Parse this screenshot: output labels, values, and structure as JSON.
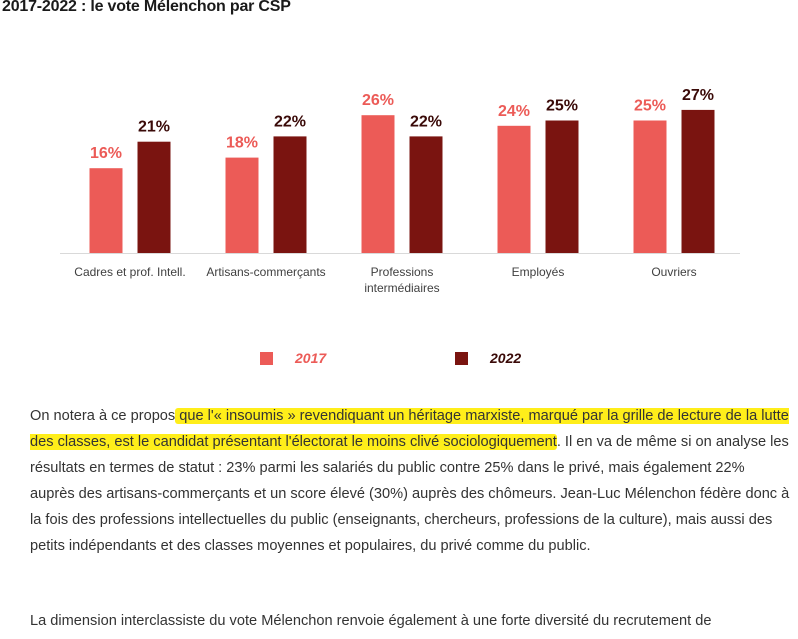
{
  "heading": "2017-2022 : le vote Mélenchon par CSP",
  "colors": {
    "s2017": "#ec5b57",
    "s2022": "#7a1410"
  },
  "chart_data": {
    "type": "bar",
    "categories": [
      [
        "Cadres et prof. Intell."
      ],
      [
        "Artisans-commerçants"
      ],
      [
        "Professions",
        "intermédiaires"
      ],
      [
        "Employés"
      ],
      [
        "Ouvriers"
      ]
    ],
    "series": [
      {
        "name": "2017",
        "values": [
          16,
          18,
          26,
          24,
          25
        ]
      },
      {
        "name": "2022",
        "values": [
          21,
          22,
          22,
          25,
          27
        ]
      }
    ],
    "data_labels": [
      [
        "16%",
        "18%",
        "26%",
        "24%",
        "25%"
      ],
      [
        "21%",
        "22%",
        "22%",
        "25%",
        "27%"
      ]
    ],
    "ylim": [
      0,
      30
    ],
    "grid": false,
    "legend_position": "bottom"
  },
  "paragraph1": {
    "pre": "On notera à ce propos",
    "highlight": " que l'« insoumis » revendiquant un héritage marxiste, marqué par la grille de lecture de la lutte des classes, est le candidat présentant l'électorat le moins clivé sociologiquement",
    "post": ". Il en va de même si on analyse les résultats en termes de statut : 23% parmi les salariés du public contre 25% dans le privé, mais également 22% auprès des artisans-commerçants et un score élevé (30%) auprès des chômeurs. Jean-Luc Mélenchon fédère donc à la fois des professions intellectuelles du public (enseignants, chercheurs, professions de la culture), mais aussi des petits indépendants et des classes moyennes et populaires, du privé comme du public."
  },
  "paragraph2": "La dimension interclassiste du vote Mélenchon renvoie également à une forte diversité du recrutement de"
}
